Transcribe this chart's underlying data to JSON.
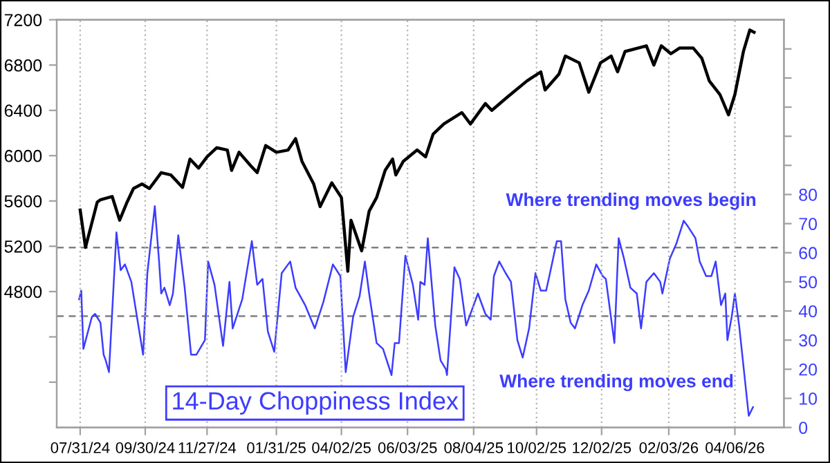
{
  "chart_data": {
    "type": "line",
    "annotations": [
      "Where trending moves begin",
      "Where trending moves end"
    ],
    "xlim": [
      "2024-07-09",
      "2026-05-22"
    ],
    "xticks": [
      {
        "value": "2024-07-31",
        "label": "07/31/24"
      },
      {
        "value": "2024-09-30",
        "label": "09/30/24"
      },
      {
        "value": "2024-11-27",
        "label": "11/27/24"
      },
      {
        "value": "2025-01-31",
        "label": "01/31/25"
      },
      {
        "value": "2025-04-02",
        "label": "04/02/25"
      },
      {
        "value": "2025-06-03",
        "label": "06/03/25"
      },
      {
        "value": "2025-08-04",
        "label": "08/04/25"
      },
      {
        "value": "2025-10-02",
        "label": "10/02/25"
      },
      {
        "value": "2025-12-02",
        "label": "12/02/25"
      },
      {
        "value": "2026-02-03",
        "label": "02/03/26"
      },
      {
        "value": "2026-04-06",
        "label": "04/06/26"
      }
    ],
    "ylim": [
      3600,
      7200
    ],
    "yticks": [
      {
        "value": 4000,
        "label": null
      },
      {
        "value": 4400,
        "label": null
      },
      4800,
      5200,
      5600,
      6000,
      6400,
      6800,
      7200
    ],
    "y2lim": [
      0,
      140
    ],
    "y2ticks": [
      0,
      10,
      20,
      30,
      40,
      50,
      60,
      70,
      80,
      {
        "value": 90,
        "label": null
      },
      {
        "value": 100,
        "label": null
      },
      {
        "value": 110,
        "label": null
      },
      {
        "value": 120,
        "label": null
      },
      {
        "value": 130,
        "label": null
      }
    ],
    "grid": "x",
    "ref_lines": [
      {
        "axis": "y2",
        "value": 61.8,
        "color": "#808080",
        "line_style": "dashed"
      },
      {
        "axis": "y2",
        "value": 38.2,
        "color": "#808080",
        "line_style": "dashed"
      }
    ],
    "series": [
      {
        "color": "#000000",
        "x": [
          "2024-07-31",
          "2024-08-05",
          "2024-08-16",
          "2024-08-19",
          "2024-08-30",
          "2024-09-06",
          "2024-09-13",
          "2024-09-19",
          "2024-09-27",
          "2024-10-04",
          "2024-10-15",
          "2024-10-24",
          "2024-10-30",
          "2024-11-04",
          "2024-11-11",
          "2024-11-19",
          "2024-11-27",
          "2024-12-06",
          "2024-12-16",
          "2024-12-20",
          "2024-12-27",
          "2025-01-07",
          "2025-01-13",
          "2025-01-21",
          "2025-01-31",
          "2025-02-11",
          "2025-02-18",
          "2025-02-24",
          "2025-03-07",
          "2025-03-13",
          "2025-03-24",
          "2025-04-02",
          "2025-04-08",
          "2025-04-11",
          "2025-04-21",
          "2025-04-28",
          "2025-05-05",
          "2025-05-13",
          "2025-05-20",
          "2025-05-23",
          "2025-05-30",
          "2025-06-12",
          "2025-06-20",
          "2025-06-27",
          "2025-07-07",
          "2025-07-24",
          "2025-08-01",
          "2025-08-15",
          "2025-08-21",
          "2025-09-05",
          "2025-09-23",
          "2025-10-06",
          "2025-10-10",
          "2025-10-23",
          "2025-10-29",
          "2025-11-11",
          "2025-11-20",
          "2025-12-01",
          "2025-12-11",
          "2025-12-17",
          "2025-12-24",
          "2026-01-13",
          "2026-01-20",
          "2026-01-27",
          "2026-02-05",
          "2026-02-13",
          "2026-02-26",
          "2026-03-06",
          "2026-03-13",
          "2026-03-23",
          "2026-03-31",
          "2026-04-06",
          "2026-04-14",
          "2026-04-20",
          "2026-04-24"
        ],
        "values": [
          5520,
          5190,
          5590,
          5610,
          5640,
          5430,
          5590,
          5710,
          5750,
          5710,
          5850,
          5830,
          5770,
          5720,
          5970,
          5890,
          5990,
          6070,
          6050,
          5870,
          6030,
          5910,
          5850,
          6090,
          6030,
          6050,
          6150,
          5950,
          5750,
          5550,
          5760,
          5630,
          4980,
          5430,
          5160,
          5510,
          5630,
          5870,
          5970,
          5830,
          5950,
          6050,
          5990,
          6190,
          6280,
          6380,
          6280,
          6460,
          6400,
          6520,
          6660,
          6740,
          6580,
          6720,
          6880,
          6820,
          6560,
          6820,
          6880,
          6740,
          6920,
          6970,
          6800,
          6970,
          6900,
          6950,
          6950,
          6860,
          6660,
          6540,
          6360,
          6540,
          6920,
          7110,
          7090
        ]
      },
      {
        "name": "14-Day Choppiness Index",
        "color": "#3c3cff",
        "axis": "y2",
        "x": [
          "2024-07-30",
          "2024-08-01",
          "2024-08-03",
          "2024-08-11",
          "2024-08-14",
          "2024-08-19",
          "2024-08-22",
          "2024-08-24",
          "2024-08-27",
          "2024-09-03",
          "2024-09-07",
          "2024-09-11",
          "2024-09-17",
          "2024-09-24",
          "2024-09-28",
          "2024-10-02",
          "2024-10-09",
          "2024-10-13",
          "2024-10-15",
          "2024-10-18",
          "2024-10-23",
          "2024-10-26",
          "2024-10-31",
          "2024-11-06",
          "2024-11-12",
          "2024-11-17",
          "2024-11-25",
          "2024-11-28",
          "2024-12-04",
          "2024-12-12",
          "2024-12-18",
          "2024-12-21",
          "2024-12-30",
          "2025-01-08",
          "2025-01-13",
          "2025-01-18",
          "2025-01-23",
          "2025-01-29",
          "2025-02-05",
          "2025-02-13",
          "2025-02-18",
          "2025-02-27",
          "2025-03-08",
          "2025-03-16",
          "2025-03-25",
          "2025-04-01",
          "2025-04-06",
          "2025-04-13",
          "2025-04-19",
          "2025-04-24",
          "2025-04-28",
          "2025-05-05",
          "2025-05-11",
          "2025-05-19",
          "2025-05-22",
          "2025-05-26",
          "2025-06-01",
          "2025-06-08",
          "2025-06-13",
          "2025-06-15",
          "2025-06-19",
          "2025-06-22",
          "2025-06-29",
          "2025-07-04",
          "2025-07-09",
          "2025-07-10",
          "2025-07-17",
          "2025-07-22",
          "2025-07-28",
          "2025-08-08",
          "2025-08-15",
          "2025-08-20",
          "2025-08-23",
          "2025-08-28",
          "2025-09-03",
          "2025-09-08",
          "2025-09-14",
          "2025-09-19",
          "2025-09-25",
          "2025-10-01",
          "2025-10-06",
          "2025-10-11",
          "2025-10-14",
          "2025-10-21",
          "2025-10-25",
          "2025-10-29",
          "2025-11-03",
          "2025-11-07",
          "2025-11-14",
          "2025-11-20",
          "2025-11-27",
          "2025-12-03",
          "2025-12-06",
          "2025-12-14",
          "2025-12-18",
          "2025-12-23",
          "2025-12-29",
          "2026-01-04",
          "2026-01-08",
          "2026-01-13",
          "2026-01-20",
          "2026-01-26",
          "2026-01-28",
          "2026-02-04",
          "2026-02-10",
          "2026-02-17",
          "2026-02-21",
          "2026-02-28",
          "2026-03-04",
          "2026-03-10",
          "2026-03-15",
          "2026-03-19",
          "2026-03-24",
          "2026-03-28",
          "2026-03-30",
          "2026-04-03",
          "2026-04-06",
          "2026-04-10",
          "2026-04-19",
          "2026-04-23"
        ],
        "values": [
          44,
          47,
          27,
          38,
          39,
          36,
          25,
          23,
          19,
          67,
          54,
          56,
          50,
          34,
          25,
          53,
          76,
          57,
          46,
          48,
          42,
          46,
          66,
          48,
          25,
          25,
          30,
          57,
          49,
          28,
          50,
          34,
          44,
          64,
          49,
          51,
          33,
          26,
          53,
          57,
          48,
          42,
          34,
          43,
          56,
          52,
          19,
          38,
          45,
          57,
          46,
          29,
          27,
          18,
          29,
          29,
          59,
          49,
          37,
          50,
          49,
          65,
          35,
          23,
          20,
          18,
          55,
          51,
          35,
          46,
          39,
          37,
          52,
          57,
          53,
          50,
          30,
          24,
          34,
          53,
          47,
          47,
          52,
          64,
          64,
          44,
          36,
          34,
          42,
          47,
          56,
          52,
          51,
          29,
          65,
          58,
          48,
          46,
          34,
          50,
          53,
          50,
          46,
          58,
          63,
          71,
          69,
          65,
          57,
          52,
          52,
          57,
          42,
          46,
          30,
          38,
          46,
          35,
          4,
          7
        ]
      }
    ]
  }
}
